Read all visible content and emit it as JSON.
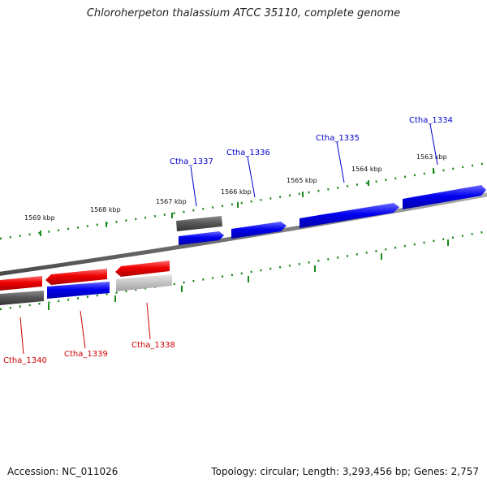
{
  "title": "Chloroherpeton thalassium ATCC 35110, complete genome",
  "footer": {
    "accession": "Accession: NC_011026",
    "summary": "Topology: circular; Length: 3,293,456 bp; Genes: 2,757"
  },
  "colors": {
    "forward_gene": "#0000ee",
    "reverse_gene": "#ee0000",
    "forward_label": "#0000cc",
    "reverse_label": "#cc0000",
    "other_feature": "#555555",
    "tick": "#1a8a1a",
    "backbone": "#777777"
  },
  "scale_labels": [
    "1569 kbp",
    "1568 kbp",
    "1567 kbp",
    "1566 kbp",
    "1565 kbp",
    "1564 kbp",
    "1563 kbp"
  ],
  "genes": [
    {
      "name": "Ctha_1334",
      "strand": "forward"
    },
    {
      "name": "Ctha_1335",
      "strand": "forward"
    },
    {
      "name": "Ctha_1336",
      "strand": "forward"
    },
    {
      "name": "Ctha_1337",
      "strand": "forward"
    },
    {
      "name": "Ctha_1338",
      "strand": "reverse"
    },
    {
      "name": "Ctha_1339",
      "strand": "reverse"
    },
    {
      "name": "Ctha_1340",
      "strand": "reverse"
    }
  ]
}
